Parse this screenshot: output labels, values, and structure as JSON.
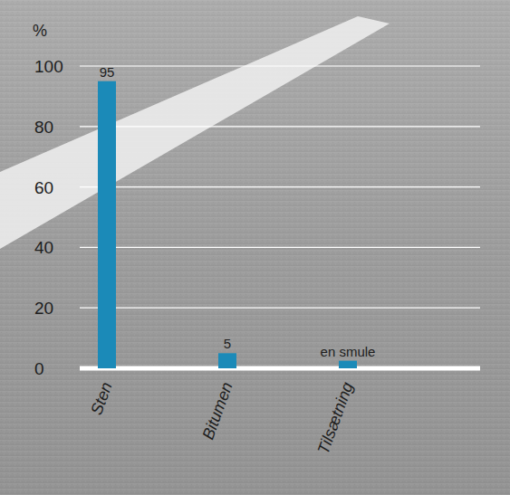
{
  "chart_data": {
    "type": "bar",
    "y_label": "%",
    "categories": [
      "Sten",
      "Bitumen",
      "Tilsætning"
    ],
    "values": [
      95,
      5,
      2.5
    ],
    "value_labels": [
      "95",
      "5",
      "en smule"
    ],
    "color": "#1b8ab8",
    "ylim": [
      0,
      100
    ],
    "yticks": [
      0,
      20,
      40,
      60,
      80,
      100
    ],
    "grid": true,
    "data_labels": true
  }
}
